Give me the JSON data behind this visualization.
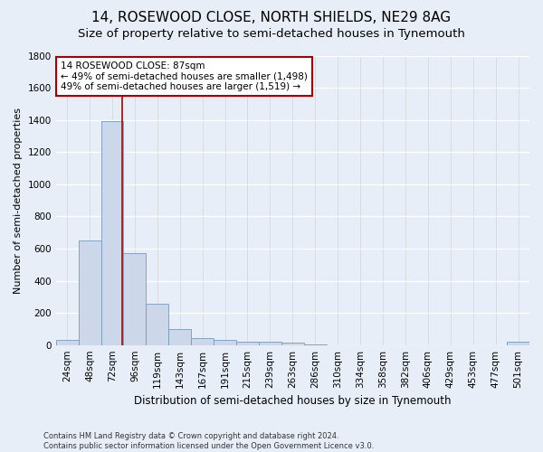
{
  "title": "14, ROSEWOOD CLOSE, NORTH SHIELDS, NE29 8AG",
  "subtitle": "Size of property relative to semi-detached houses in Tynemouth",
  "xlabel": "Distribution of semi-detached houses by size in Tynemouth",
  "ylabel": "Number of semi-detached properties",
  "categories": [
    "24sqm",
    "48sqm",
    "72sqm",
    "96sqm",
    "119sqm",
    "143sqm",
    "167sqm",
    "191sqm",
    "215sqm",
    "239sqm",
    "263sqm",
    "286sqm",
    "310sqm",
    "334sqm",
    "358sqm",
    "382sqm",
    "406sqm",
    "429sqm",
    "453sqm",
    "477sqm",
    "501sqm"
  ],
  "values": [
    30,
    650,
    1390,
    570,
    255,
    100,
    45,
    30,
    20,
    18,
    15,
    5,
    0,
    0,
    0,
    0,
    0,
    0,
    0,
    0,
    20
  ],
  "bar_color": "#ccd8ea",
  "bar_edge_color": "#7799bb",
  "vline_x": 2.45,
  "vline_color": "#aa0000",
  "annotation_text": "14 ROSEWOOD CLOSE: 87sqm\n← 49% of semi-detached houses are smaller (1,498)\n49% of semi-detached houses are larger (1,519) →",
  "annotation_box_color": "#ffffff",
  "annotation_box_edgecolor": "#aa0000",
  "ylim": [
    0,
    1800
  ],
  "yticks": [
    0,
    200,
    400,
    600,
    800,
    1000,
    1200,
    1400,
    1600,
    1800
  ],
  "footer": "Contains HM Land Registry data © Crown copyright and database right 2024.\nContains public sector information licensed under the Open Government Licence v3.0.",
  "background_color": "#e8eef8",
  "grid_color": "#d8dde8",
  "title_fontsize": 11,
  "subtitle_fontsize": 9.5,
  "ylabel_fontsize": 8,
  "xlabel_fontsize": 8.5,
  "tick_fontsize": 7.5,
  "annotation_fontsize": 7.5,
  "footer_fontsize": 6.0
}
